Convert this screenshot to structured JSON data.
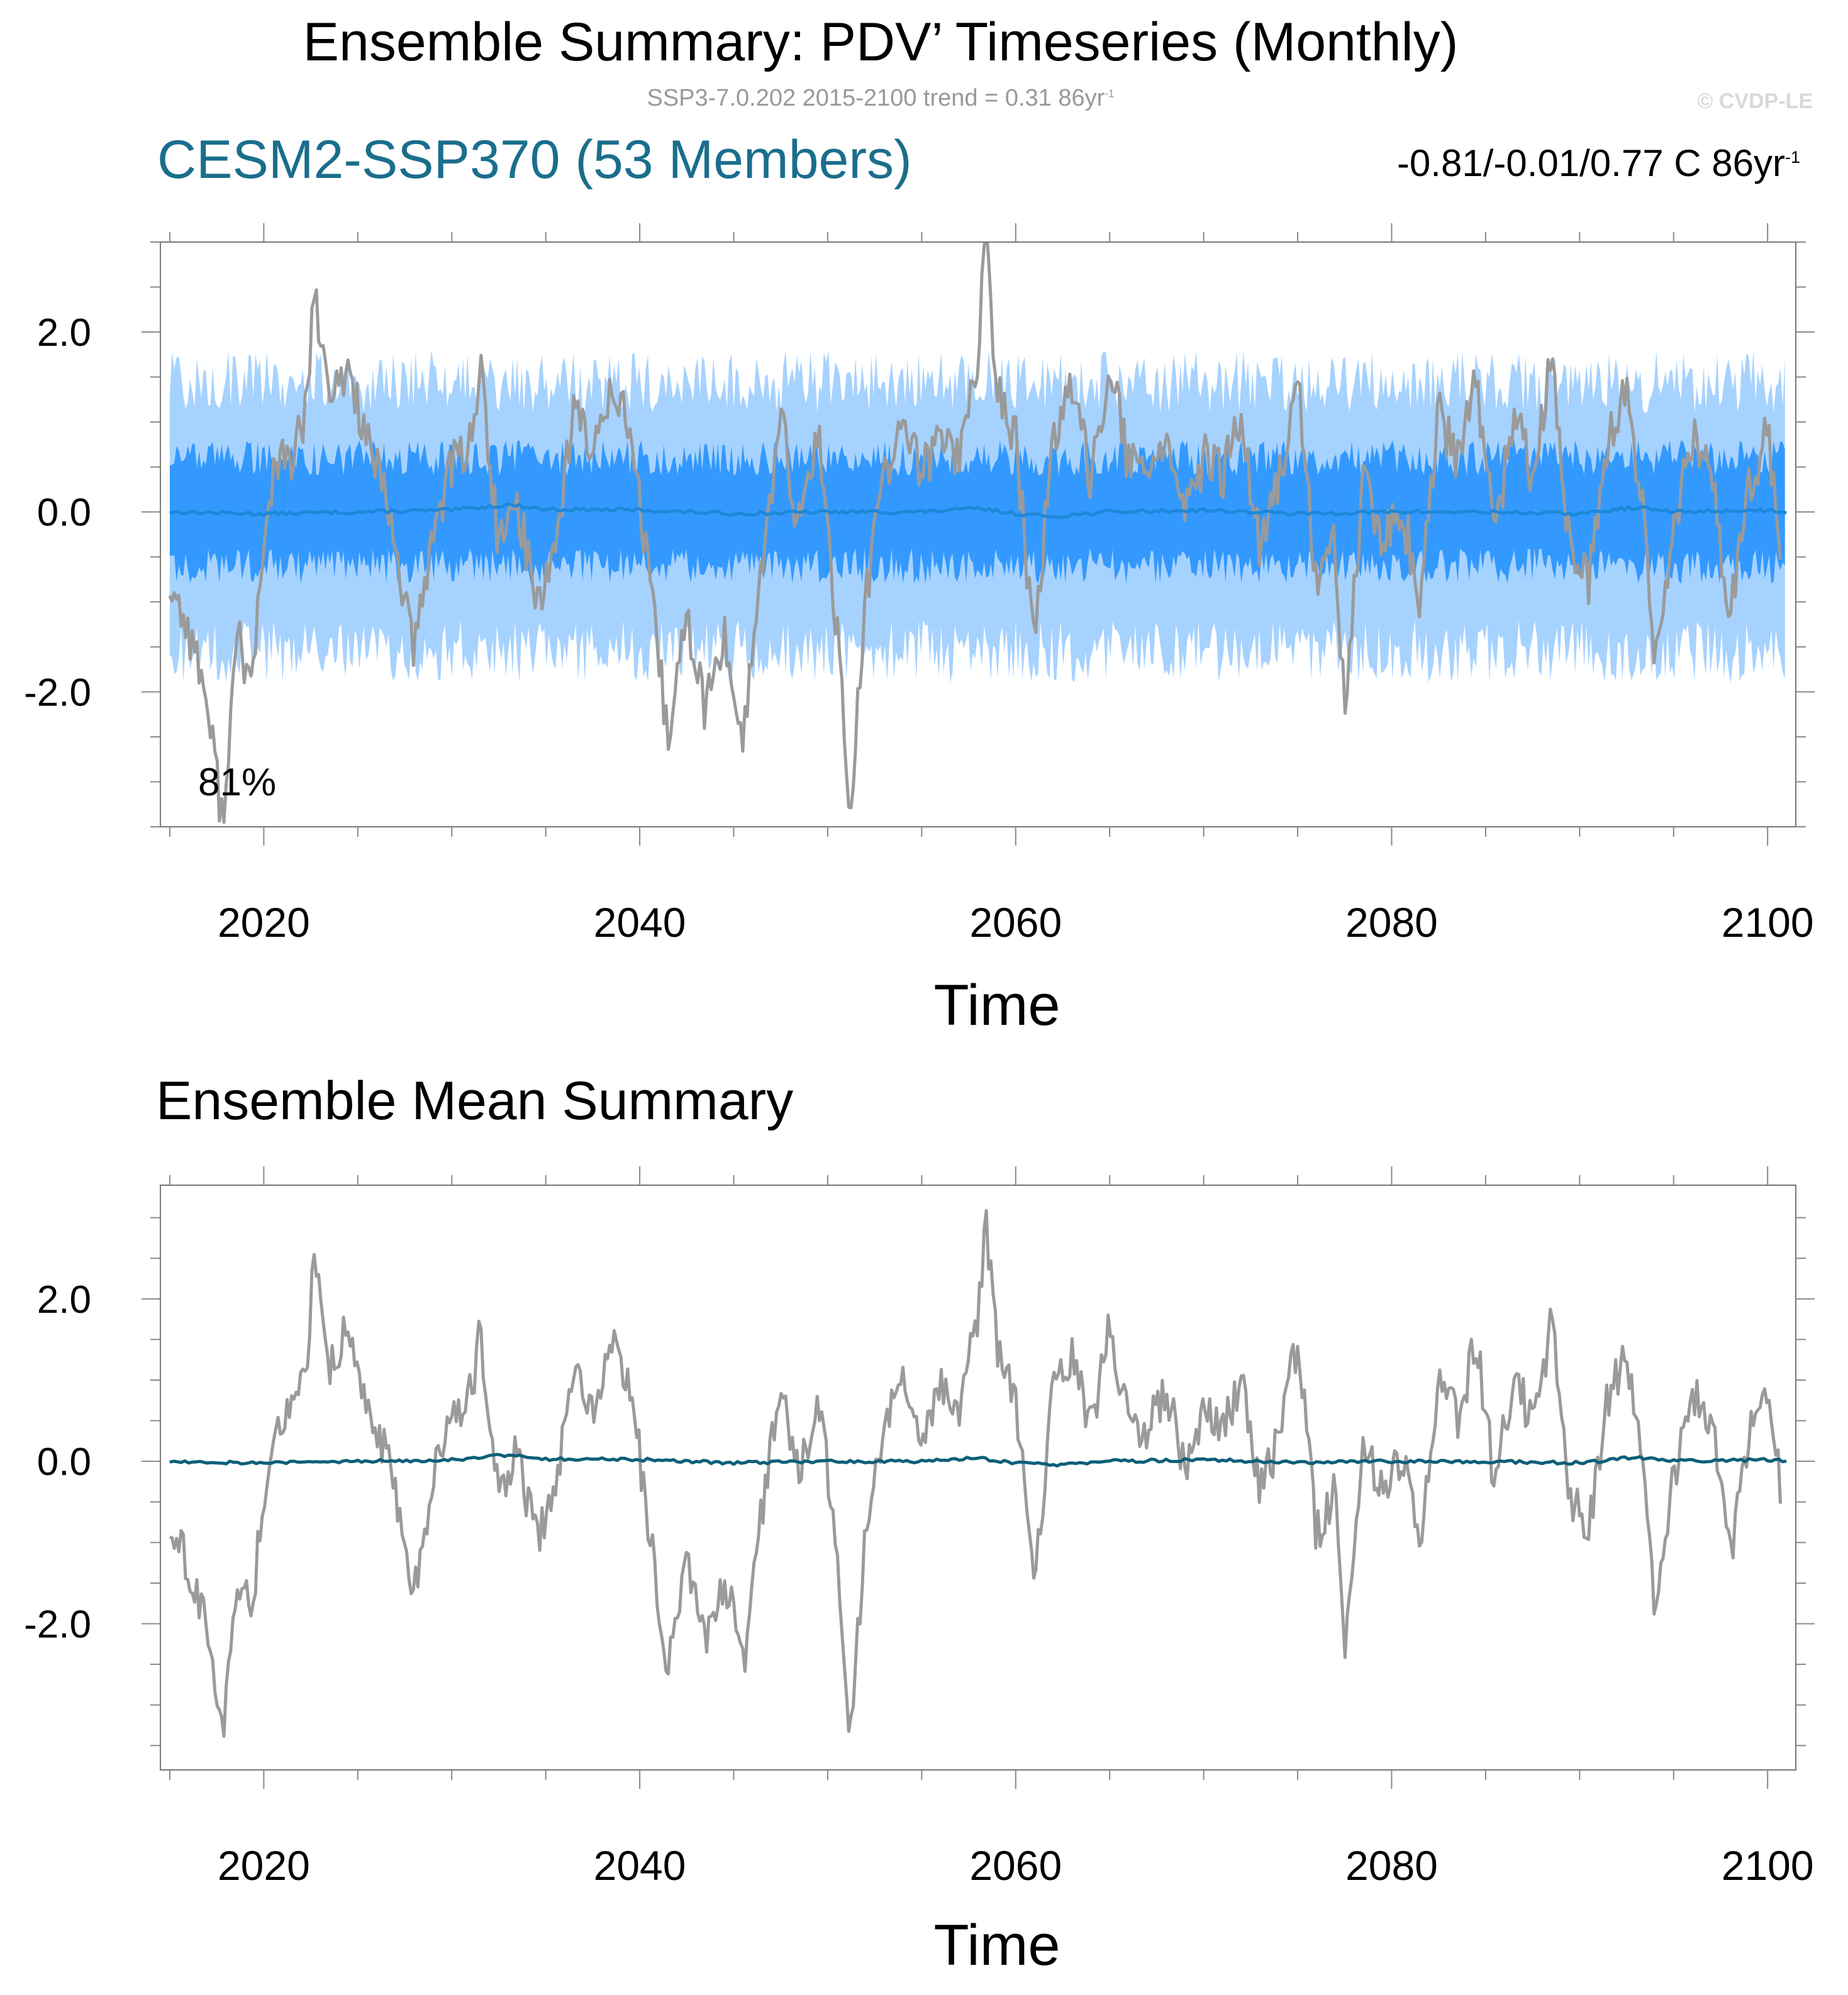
{
  "title": "Ensemble Summary: PDV’ Timeseries (Monthly)",
  "subtitle": {
    "text": "SSP3-7.0.202 2015-2100 trend = 0.31 86yr",
    "sup": "-1"
  },
  "copyright": "© CVDP-LE",
  "colors": {
    "model_label": "#1a6e8c",
    "observed_line": "#9a9a9a",
    "ensemble_mean_top": "#1e88d8",
    "ensemble_mean_bottom": "#0e5f7a",
    "band_inner": "#3399ff",
    "band_outer": "#a6d2ff",
    "axis": "#888888"
  },
  "panels": {
    "top": {
      "model_label": "CESM2-SSP370 (53 Members)",
      "stats": {
        "text": "-0.81/-0.01/0.77 C 86yr",
        "sup": "-1"
      },
      "percent": "81%",
      "xlabel": "Time"
    },
    "bottom": {
      "title": "Ensemble Mean Summary",
      "xlabel": "Time"
    }
  },
  "chart_data": [
    {
      "type": "line",
      "panel": "top",
      "title": "CESM2-SSP370 (53 Members)",
      "xlabel": "Time",
      "ylabel": "",
      "xlim": [
        2014.5,
        2101.5
      ],
      "ylim": [
        -3.5,
        3.0
      ],
      "xticks": [
        2020,
        2040,
        2060,
        2080,
        2100
      ],
      "xtick_labels": [
        "2020",
        "2040",
        "2060",
        "2080",
        "2100"
      ],
      "yticks": [
        -2.0,
        0.0,
        2.0
      ],
      "ytick_labels": [
        "-2.0",
        "0.0",
        "2.0"
      ],
      "bands": [
        {
          "kind": "outer",
          "lower": -1.55,
          "upper": 1.45
        },
        {
          "kind": "inner",
          "lower": -0.6,
          "upper": 0.6
        }
      ],
      "annotation": "81%",
      "series": [
        {
          "role": "observed",
          "x": [
            2015.0,
            2016.0,
            2016.8,
            2017.8,
            2018.6,
            2019.3,
            2020.5,
            2021.5,
            2022.3,
            2022.6,
            2023.5,
            2024.5,
            2025.5,
            2026.5,
            2027.2,
            2028.0,
            2029.0,
            2030.0,
            2031.0,
            2031.5,
            2032.5,
            2033.5,
            2034.5,
            2035.5,
            2036.5,
            2037.5,
            2038.5,
            2039.5,
            2040.5,
            2041.5,
            2042.5,
            2043.5,
            2044.5,
            2045.5,
            2046.5,
            2047.5,
            2048.5,
            2049.5,
            2050.5,
            2051.2,
            2052.0,
            2053.0,
            2054.0,
            2055.0,
            2056.0,
            2057.0,
            2058.0,
            2058.4,
            2059.0,
            2060.0,
            2061.0,
            2062.0,
            2063.0,
            2064.0,
            2065.0,
            2066.0,
            2067.0,
            2068.0,
            2069.0,
            2070.0,
            2071.0,
            2072.0,
            2073.0,
            2074.0,
            2075.0,
            2076.0,
            2077.0,
            2077.5,
            2078.5,
            2079.5,
            2080.5,
            2081.5,
            2082.5,
            2083.5,
            2084.5,
            2085.5,
            2086.5,
            2087.5,
            2088.5,
            2089.5,
            2090.5,
            2091.5,
            2092.5,
            2093.5,
            2094.0,
            2095.0,
            2096.0,
            2097.0,
            2098.0,
            2099.0,
            2100.0,
            2100.7
          ],
          "y": [
            -0.8,
            -1.3,
            -1.9,
            -3.4,
            -1.4,
            -1.9,
            0.5,
            0.6,
            1.1,
            2.5,
            1.2,
            1.6,
            0.8,
            0.1,
            -0.6,
            -1.6,
            -0.2,
            0.5,
            0.8,
            1.6,
            -0.4,
            0.1,
            -1.0,
            -0.4,
            1.2,
            0.6,
            1.5,
            0.9,
            -0.8,
            -2.5,
            -1.2,
            -2.2,
            -1.4,
            -2.5,
            -0.6,
            1.0,
            -0.2,
            0.9,
            -1.3,
            -3.4,
            -1.0,
            0.4,
            1.0,
            0.4,
            0.9,
            0.6,
            1.8,
            3.0,
            1.4,
            0.8,
            -1.5,
            0.9,
            1.3,
            0.4,
            1.7,
            0.5,
            0.4,
            0.9,
            -0.1,
            0.6,
            0.4,
            1.0,
            -0.4,
            0.3,
            1.5,
            -0.9,
            -0.3,
            -2.2,
            0.3,
            -0.4,
            0.1,
            -1.0,
            1.1,
            0.5,
            1.5,
            -0.3,
            1.1,
            0.4,
            1.7,
            -0.5,
            -0.8,
            0.8,
            1.3,
            -0.2,
            -1.8,
            -0.2,
            0.8,
            0.5,
            -1.2,
            0.3,
            0.9,
            -0.3
          ]
        },
        {
          "role": "ensemble_mean",
          "x": [
            2015,
            2020,
            2025,
            2030,
            2033,
            2035,
            2040,
            2045,
            2050,
            2055,
            2058,
            2060,
            2062,
            2065,
            2070,
            2075,
            2080,
            2085,
            2090,
            2093,
            2095,
            2100,
            2101
          ],
          "y": [
            0.0,
            -0.02,
            0.0,
            0.02,
            0.08,
            0.03,
            0.02,
            -0.02,
            0.0,
            0.0,
            0.04,
            -0.02,
            -0.05,
            0.0,
            0.02,
            -0.02,
            0.0,
            0.0,
            -0.02,
            0.05,
            0.0,
            0.02,
            0.0
          ]
        }
      ]
    },
    {
      "type": "line",
      "panel": "bottom",
      "title": "Ensemble Mean Summary",
      "xlabel": "Time",
      "ylabel": "",
      "xlim": [
        2014.5,
        2101.5
      ],
      "ylim": [
        -3.8,
        3.4
      ],
      "xticks": [
        2020,
        2040,
        2060,
        2080,
        2100
      ],
      "xtick_labels": [
        "2020",
        "2040",
        "2060",
        "2080",
        "2100"
      ],
      "yticks": [
        -2.0,
        0.0,
        2.0
      ],
      "ytick_labels": [
        "-2.0",
        "0.0",
        "2.0"
      ],
      "series": [
        {
          "role": "observed",
          "x": [
            2015.0,
            2016.0,
            2016.8,
            2017.8,
            2018.6,
            2019.3,
            2020.5,
            2021.5,
            2022.3,
            2022.6,
            2023.5,
            2024.5,
            2025.5,
            2026.5,
            2027.2,
            2028.0,
            2029.0,
            2030.0,
            2031.0,
            2031.5,
            2032.5,
            2033.5,
            2034.5,
            2035.5,
            2036.5,
            2037.5,
            2038.5,
            2039.5,
            2040.5,
            2041.5,
            2042.5,
            2043.5,
            2044.5,
            2045.5,
            2046.5,
            2047.5,
            2048.5,
            2049.5,
            2050.5,
            2051.2,
            2052.0,
            2053.0,
            2054.0,
            2055.0,
            2056.0,
            2057.0,
            2058.0,
            2058.4,
            2059.0,
            2060.0,
            2061.0,
            2062.0,
            2063.0,
            2064.0,
            2065.0,
            2066.0,
            2067.0,
            2068.0,
            2069.0,
            2070.0,
            2071.0,
            2072.0,
            2073.0,
            2074.0,
            2075.0,
            2076.0,
            2077.0,
            2077.5,
            2078.5,
            2079.5,
            2080.5,
            2081.5,
            2082.5,
            2083.5,
            2084.5,
            2085.5,
            2086.5,
            2087.5,
            2088.5,
            2089.5,
            2090.5,
            2091.5,
            2092.5,
            2093.5,
            2094.0,
            2095.0,
            2096.0,
            2097.0,
            2098.0,
            2099.0,
            2100.0,
            2100.7
          ],
          "y": [
            -0.8,
            -1.3,
            -1.9,
            -3.4,
            -1.4,
            -1.9,
            0.5,
            0.6,
            1.1,
            2.5,
            1.2,
            1.6,
            0.8,
            0.1,
            -0.6,
            -1.6,
            -0.2,
            0.5,
            0.8,
            1.6,
            -0.4,
            0.1,
            -1.0,
            -0.4,
            1.2,
            0.6,
            1.5,
            0.9,
            -0.8,
            -2.5,
            -1.2,
            -2.2,
            -1.4,
            -2.5,
            -0.6,
            1.0,
            -0.2,
            0.9,
            -1.3,
            -3.4,
            -1.0,
            0.4,
            1.0,
            0.4,
            0.9,
            0.6,
            1.8,
            3.0,
            1.4,
            0.8,
            -1.5,
            0.9,
            1.3,
            0.4,
            1.7,
            0.5,
            0.4,
            0.9,
            -0.1,
            0.6,
            0.4,
            1.0,
            -0.4,
            0.3,
            1.5,
            -0.9,
            -0.3,
            -2.2,
            0.3,
            -0.4,
            0.1,
            -1.0,
            1.1,
            0.5,
            1.5,
            -0.3,
            1.1,
            0.4,
            1.7,
            -0.5,
            -0.8,
            0.8,
            1.3,
            -0.2,
            -1.8,
            -0.2,
            0.8,
            0.5,
            -1.2,
            0.3,
            0.9,
            -0.3
          ]
        },
        {
          "role": "ensemble_mean",
          "x": [
            2015,
            2020,
            2025,
            2030,
            2033,
            2035,
            2040,
            2045,
            2050,
            2055,
            2058,
            2060,
            2062,
            2065,
            2070,
            2075,
            2080,
            2085,
            2090,
            2093,
            2095,
            2100,
            2101
          ],
          "y": [
            0.0,
            -0.02,
            0.0,
            0.02,
            0.08,
            0.03,
            0.02,
            -0.02,
            0.0,
            0.0,
            0.04,
            -0.02,
            -0.05,
            0.0,
            0.02,
            -0.02,
            0.0,
            0.0,
            -0.02,
            0.05,
            0.0,
            0.02,
            0.0
          ]
        }
      ]
    }
  ]
}
